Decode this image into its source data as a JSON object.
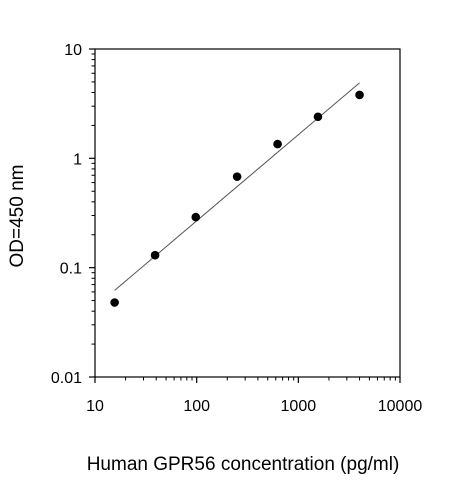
{
  "chart_data": {
    "type": "scatter",
    "title": "",
    "xlabel": "Human GPR56 concentration (pg/ml)",
    "ylabel": "OD=450 nm",
    "x_scale": "log",
    "y_scale": "log",
    "xlim": [
      10,
      10000
    ],
    "ylim": [
      0.01,
      10
    ],
    "x_ticks": [
      10,
      100,
      1000,
      10000
    ],
    "x_tick_labels": [
      "10",
      "100",
      "1000",
      "10000"
    ],
    "y_ticks": [
      0.01,
      0.1,
      1,
      10
    ],
    "y_tick_labels": [
      "0.01",
      "0.1",
      "1",
      "10"
    ],
    "grid": false,
    "legend": "none",
    "series": [
      {
        "type": "scatter",
        "color": "#000000",
        "points": [
          {
            "x": 15.6,
            "y": 0.048
          },
          {
            "x": 39,
            "y": 0.13
          },
          {
            "x": 98,
            "y": 0.29
          },
          {
            "x": 250,
            "y": 0.68
          },
          {
            "x": 625,
            "y": 1.35
          },
          {
            "x": 1560,
            "y": 2.4
          },
          {
            "x": 4000,
            "y": 3.8
          }
        ]
      },
      {
        "type": "line",
        "color": "#555555",
        "points": [
          {
            "x": 15.6,
            "y": 0.062
          },
          {
            "x": 4000,
            "y": 4.9
          }
        ]
      }
    ]
  }
}
